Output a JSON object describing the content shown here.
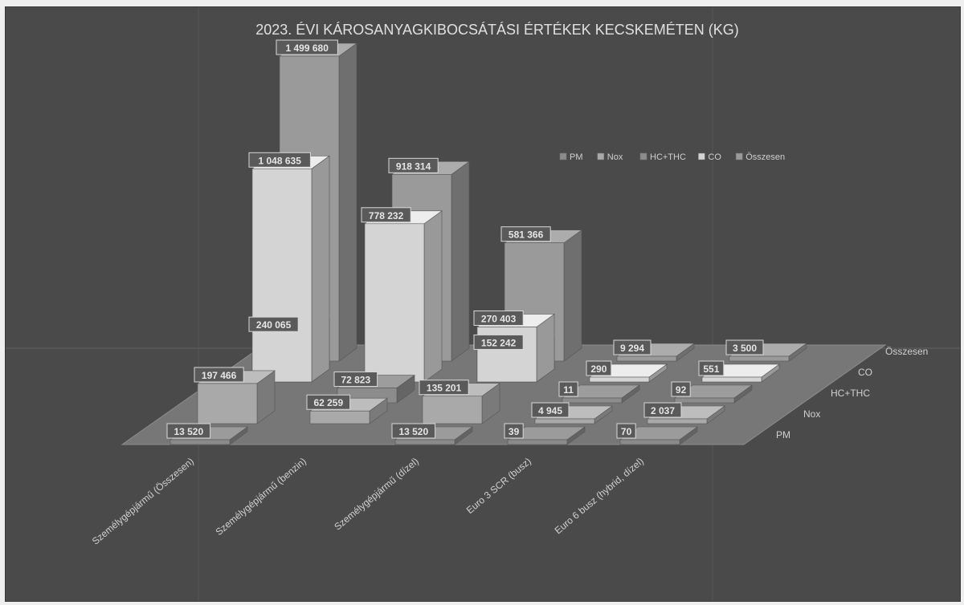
{
  "chart_data": {
    "type": "bar",
    "subtype": "3d-column",
    "title": "2023. ÉVI KÁROSANYAGKIBOCSÁTÁSI ÉRTÉKEK KECSKEMÉTEN (KG)",
    "categories": [
      "Személygépjármű (Összesen)",
      "Személygépjármű (benzin)",
      "Személygépjármű (dízel)",
      "Euro 3 SCR (busz)",
      "Euro 6 busz (hybrid, dízel)"
    ],
    "series": [
      {
        "name": "PM",
        "labels": [
          "13 520",
          "",
          "13 520",
          "39",
          "70"
        ]
      },
      {
        "name": "Nox",
        "labels": [
          "197 466",
          "62 259",
          "135 201",
          "4 945",
          "2 037"
        ]
      },
      {
        "name": "HC+THC",
        "labels": [
          "",
          "72 823",
          "",
          "11",
          "92"
        ]
      },
      {
        "name": "CO",
        "labels": [
          "240 065",
          "",
          "152 242",
          "290",
          "551"
        ]
      },
      {
        "name": "Összesen",
        "labels": [
          "",
          "",
          "",
          "9 294",
          "3 500"
        ]
      }
    ],
    "series_values": [
      [
        13520,
        0,
        13520,
        39,
        70
      ],
      [
        197466,
        62259,
        135201,
        4945,
        2037
      ],
      [
        0,
        72823,
        0,
        11,
        92
      ],
      [
        240065,
        0,
        152242,
        290,
        551
      ],
      [
        0,
        0,
        0,
        9294,
        3500
      ]
    ],
    "extra_bars": [
      {
        "category_index": 0,
        "row_index": 4,
        "value": 1499680,
        "label": "1 499 680"
      },
      {
        "category_index": 0,
        "row_index": 3,
        "value": 1048635,
        "label": "1 048 635"
      },
      {
        "category_index": 1,
        "row_index": 4,
        "value": 918314,
        "label": "918 314"
      },
      {
        "category_index": 1,
        "row_index": 3,
        "value": 778232,
        "label": "778 232"
      },
      {
        "category_index": 2,
        "row_index": 4,
        "value": 581366,
        "label": "581 366"
      },
      {
        "category_index": 2,
        "row_index": 3,
        "value": 270403,
        "label": "270 403"
      }
    ],
    "depth_axis_labels": [
      "PM",
      "Nox",
      "HC+THC",
      "CO",
      "Összesen"
    ],
    "legend": {
      "placement": "top-right",
      "entries": [
        "PM",
        "Nox",
        "HC+THC",
        "CO",
        "Összesen"
      ]
    },
    "colors": {
      "background": "#4a4a4a",
      "PM": "#8a8a8a",
      "Nox": "#a9a9a9",
      "HC+THC": "#8c8c8c",
      "CO": "#d4d4d4",
      "Összesen": "#9a9a9a",
      "floor": "#777777",
      "text": "#e6e6e6"
    },
    "grid": true
  }
}
